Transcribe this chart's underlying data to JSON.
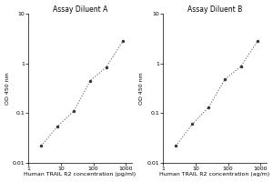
{
  "left": {
    "title": "Assay Diluent A",
    "xlabel": "Human TRAIL R2 concentration (pg/ml)",
    "ylabel": "OD 450 nm",
    "x": [
      2.5,
      8,
      25,
      80,
      250,
      800
    ],
    "y": [
      0.022,
      0.055,
      0.11,
      0.45,
      0.85,
      2.8
    ]
  },
  "right": {
    "title": "Assay Diluent B",
    "xlabel": "Human TRAIL R2 concentration (ag/m)",
    "ylabel": "OD 450 nm",
    "x": [
      2.5,
      8,
      25,
      80,
      250,
      800
    ],
    "y": [
      0.022,
      0.06,
      0.13,
      0.48,
      0.88,
      2.8
    ]
  },
  "xlim": [
    1,
    1500
  ],
  "ylim": [
    0.01,
    10
  ],
  "xticks": [
    1,
    10,
    100,
    1000
  ],
  "xtick_labels": [
    "1",
    "10",
    "100",
    "1000"
  ],
  "yticks": [
    0.01,
    0.1,
    1,
    10
  ],
  "ytick_labels": [
    "0.01",
    "0.1",
    "1",
    "10"
  ],
  "bg_color": "#ffffff",
  "line_color": "#666666",
  "marker_color": "#333333",
  "title_fontsize": 5.5,
  "label_fontsize": 4.5,
  "tick_fontsize": 4.5,
  "ylabel_fontsize": 4.5
}
